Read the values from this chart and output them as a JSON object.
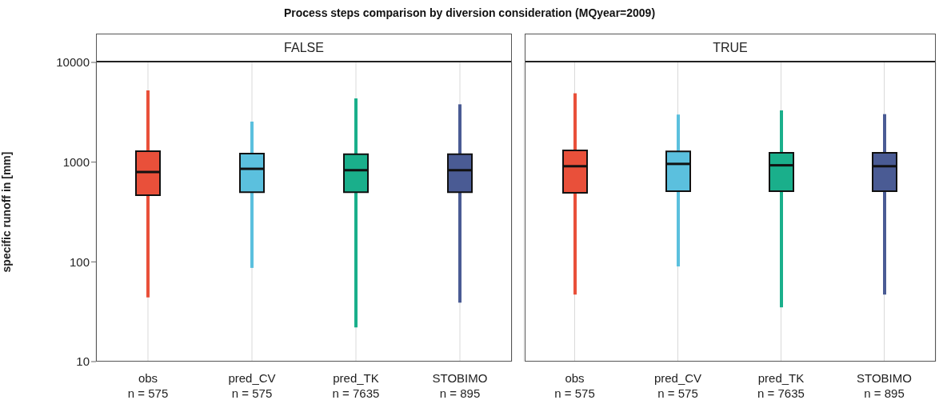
{
  "chart_data": [
    {
      "type": "box",
      "title": "Process steps comparison by diversion consideration (MQyear=2009)",
      "subtitle": "FALSE",
      "ylabel": "specific runoff in [mm]",
      "categories": [
        "obs\nn = 575",
        "pred_CV\nn = 575",
        "pred_TK\nn = 7635",
        "STOBIMO\nn = 895"
      ],
      "colors": [
        "#e9503a",
        "#5bc0de",
        "#1aaf8b",
        "#4a5b94"
      ],
      "boxes": [
        {
          "low": 44,
          "q1": 467,
          "median": 796,
          "q3": 1290,
          "high": 5250
        },
        {
          "low": 87,
          "q1": 500,
          "median": 857,
          "q3": 1220,
          "high": 2550
        },
        {
          "low": 22,
          "q1": 500,
          "median": 830,
          "q3": 1200,
          "high": 4350
        },
        {
          "low": 39,
          "q1": 500,
          "median": 830,
          "q3": 1200,
          "high": 3800
        }
      ],
      "log": true,
      "ylim": [
        10,
        10000
      ],
      "yticks": [
        10,
        100,
        1000,
        10000
      ],
      "grid": true
    },
    {
      "type": "box",
      "subtitle": "TRUE",
      "categories": [
        "obs\nn = 575",
        "pred_CV\nn = 575",
        "pred_TK\nn = 7635",
        "STOBIMO\nn = 895"
      ],
      "colors": [
        "#e9503a",
        "#5bc0de",
        "#1aaf8b",
        "#4a5b94"
      ],
      "boxes": [
        {
          "low": 47,
          "q1": 493,
          "median": 910,
          "q3": 1310,
          "high": 4900
        },
        {
          "low": 90,
          "q1": 510,
          "median": 960,
          "q3": 1280,
          "high": 3000
        },
        {
          "low": 35,
          "q1": 510,
          "median": 930,
          "q3": 1240,
          "high": 3300
        },
        {
          "low": 47,
          "q1": 510,
          "median": 910,
          "q3": 1240,
          "high": 3030
        }
      ],
      "log": true,
      "ylim": [
        10,
        10000
      ],
      "yticks": [
        10,
        100,
        1000,
        10000
      ],
      "grid": true,
      "tick_labels": "x"
    }
  ]
}
